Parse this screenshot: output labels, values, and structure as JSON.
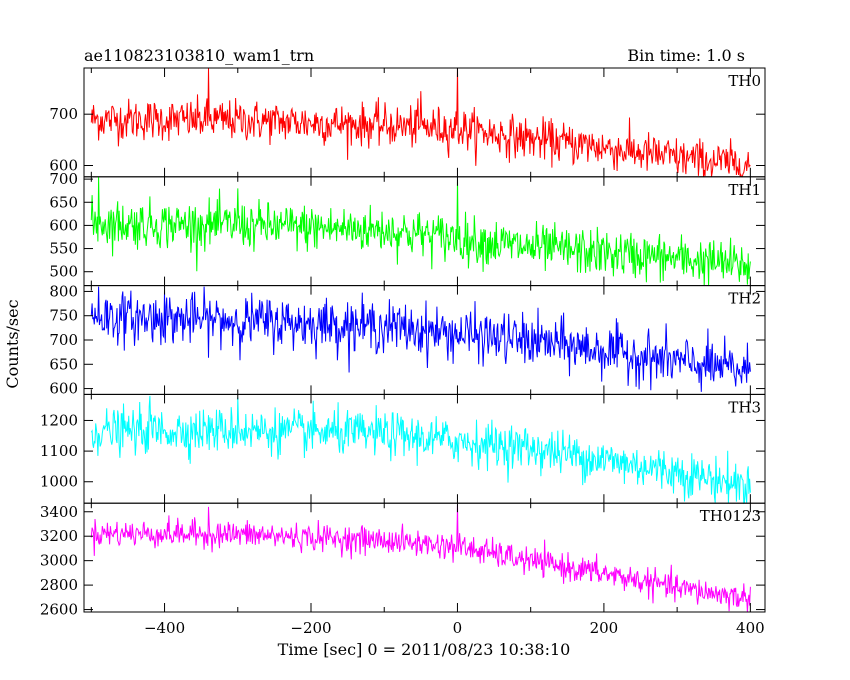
{
  "header": {
    "title": "ae110823103810_wam1_trn",
    "bin_time": "Bin time: 1.0 s"
  },
  "axes": {
    "xlabel": "Time [sec] 0 = 2011/08/23 10:38:10",
    "ylabel": "Counts/sec"
  },
  "chart_data": {
    "type": "line",
    "title": "ae110823103810_wam1_trn",
    "xlabel": "Time [sec] 0 = 2011/08/23 10:38:10",
    "ylabel": "Counts/sec",
    "xlim": [
      -510,
      420
    ],
    "x_ticks": [
      -400,
      -200,
      0,
      200,
      400
    ],
    "grid": false,
    "legend": "none",
    "bin_time_s": 1.0,
    "x_range_data": [
      -500,
      400
    ],
    "panels": [
      {
        "name": "TH0",
        "color": "#ff0000",
        "ylim": [
          578,
          790
        ],
        "yticks": [
          600,
          700
        ],
        "ytick_labels": [
          "600",
          "700"
        ],
        "trend": [
          [
            -500,
            690
          ],
          [
            -300,
            688
          ],
          [
            -100,
            678
          ],
          [
            0,
            672
          ],
          [
            100,
            652
          ],
          [
            200,
            635
          ],
          [
            300,
            615
          ],
          [
            400,
            600
          ]
        ],
        "noise": 20,
        "spikes": [
          [
            -340,
            790
          ],
          [
            -50,
            745
          ],
          [
            0,
            790
          ],
          [
            180,
            660
          ]
        ]
      },
      {
        "name": "TH1",
        "color": "#00ff00",
        "ylim": [
          470,
          705
        ],
        "yticks": [
          500,
          550,
          600,
          650,
          700
        ],
        "ytick_labels": [
          "500",
          "550",
          "600",
          "650",
          "700"
        ],
        "trend": [
          [
            -500,
            605
          ],
          [
            -300,
            600
          ],
          [
            -100,
            590
          ],
          [
            0,
            572
          ],
          [
            100,
            552
          ],
          [
            200,
            540
          ],
          [
            300,
            528
          ],
          [
            400,
            512
          ]
        ],
        "noise": 25,
        "spikes": [
          [
            -490,
            705
          ],
          [
            0,
            700
          ],
          [
            -300,
            680
          ]
        ]
      },
      {
        "name": "TH2",
        "color": "#0000ff",
        "ylim": [
          588,
          812
        ],
        "yticks": [
          600,
          650,
          700,
          750,
          800
        ],
        "ytick_labels": [
          "600",
          "650",
          "700",
          "750",
          "800"
        ],
        "trend": [
          [
            -500,
            748
          ],
          [
            -300,
            740
          ],
          [
            -100,
            728
          ],
          [
            0,
            712
          ],
          [
            100,
            698
          ],
          [
            200,
            678
          ],
          [
            300,
            655
          ],
          [
            400,
            635
          ]
        ],
        "noise": 26,
        "spikes": [
          [
            -490,
            810
          ],
          [
            -400,
            800
          ]
        ]
      },
      {
        "name": "TH3",
        "color": "#00ffff",
        "ylim": [
          930,
          1285
        ],
        "yticks": [
          1000,
          1100,
          1200
        ],
        "ytick_labels": [
          "1000",
          "1100",
          "1200"
        ],
        "trend": [
          [
            -500,
            1165
          ],
          [
            -300,
            1168
          ],
          [
            -100,
            1155
          ],
          [
            0,
            1132
          ],
          [
            100,
            1110
          ],
          [
            200,
            1072
          ],
          [
            300,
            1032
          ],
          [
            400,
            985
          ]
        ],
        "noise": 36,
        "spikes": [
          [
            -420,
            1280
          ],
          [
            -300,
            1275
          ]
        ]
      },
      {
        "name": "TH0123",
        "color": "#ff00ff",
        "ylim": [
          2580,
          3470
        ],
        "yticks": [
          2600,
          2800,
          3000,
          3200,
          3400
        ],
        "ytick_labels": [
          "2600",
          "2800",
          "3000",
          "3200",
          "3400"
        ],
        "trend": [
          [
            -500,
            3225
          ],
          [
            -300,
            3215
          ],
          [
            -100,
            3165
          ],
          [
            0,
            3115
          ],
          [
            100,
            2995
          ],
          [
            200,
            2895
          ],
          [
            300,
            2775
          ],
          [
            400,
            2690
          ]
        ],
        "noise": 55,
        "spikes": [
          [
            0,
            3460
          ],
          [
            -340,
            3440
          ]
        ]
      }
    ]
  }
}
